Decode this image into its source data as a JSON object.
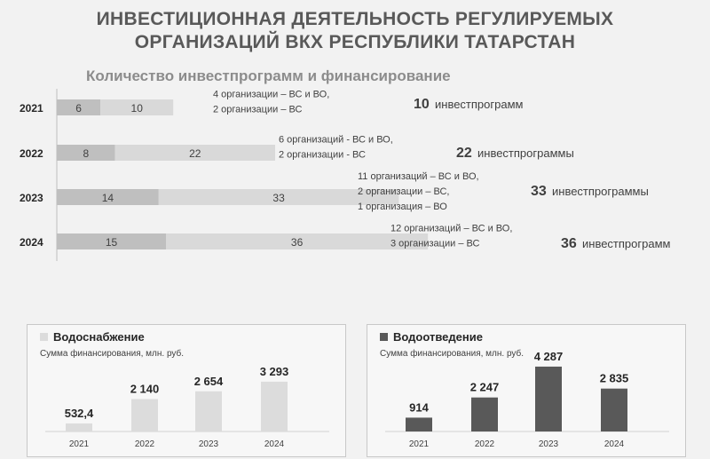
{
  "title_line1": "ИНВЕСТИЦИОННАЯ ДЕЯТЕЛЬНОСТЬ РЕГУЛИРУЕМЫХ",
  "title_line2": "ОРГАНИЗАЦИЙ ВКХ РЕСПУБЛИКИ ТАТАРСТАН",
  "subtitle": "Количество инвестпрограмм и финансирование",
  "colors": {
    "bar_light": "#d9d9d9",
    "bar_dark": "#bfbfbf",
    "water_supply": "#dcdcdc",
    "wastewater": "#595959"
  },
  "chart_data": [
    {
      "type": "bar",
      "orientation": "horizontal",
      "stacked": true,
      "categories": [
        "2021",
        "2022",
        "2023",
        "2024"
      ],
      "series": [
        {
          "values": [
            6,
            8,
            14,
            15
          ]
        },
        {
          "values": [
            10,
            22,
            33,
            36
          ]
        }
      ],
      "annotations": [
        {
          "lines": [
            "4 организации – ВС и ВО,",
            "2 организации – ВС"
          ],
          "total": "10",
          "total_label": "инвестпрограмм"
        },
        {
          "lines": [
            "6 организаций - ВС и ВО,",
            "2 организации - ВС"
          ],
          "total": "22",
          "total_label": "инвестпрограммы"
        },
        {
          "lines": [
            "11 организаций – ВС и ВО,",
            "2 организации – ВС,",
            "1 организация – ВО"
          ],
          "total": "33",
          "total_label": "инвестпрограммы"
        },
        {
          "lines": [
            "12 организаций – ВС и ВО,",
            "3 организации – ВС"
          ],
          "total": "36",
          "total_label": "инвестпрограмм"
        }
      ]
    },
    {
      "type": "bar",
      "title": "Водоснабжение",
      "ylabel": "Сумма финансирования, млн. руб.",
      "categories": [
        "2021",
        "2022",
        "2023",
        "2024"
      ],
      "values": [
        532.4,
        2140,
        2654,
        3293
      ],
      "labels": [
        "532,4",
        "2 140",
        "2 654",
        "3 293"
      ],
      "color": "#dcdcdc"
    },
    {
      "type": "bar",
      "title": "Водоотведение",
      "ylabel": "Сумма финансирования, млн. руб.",
      "categories": [
        "2021",
        "2022",
        "2023",
        "2024"
      ],
      "values": [
        914,
        2247,
        4287,
        2835
      ],
      "labels": [
        "914",
        "2 247",
        "4 287",
        "2 835"
      ],
      "color": "#595959"
    }
  ]
}
